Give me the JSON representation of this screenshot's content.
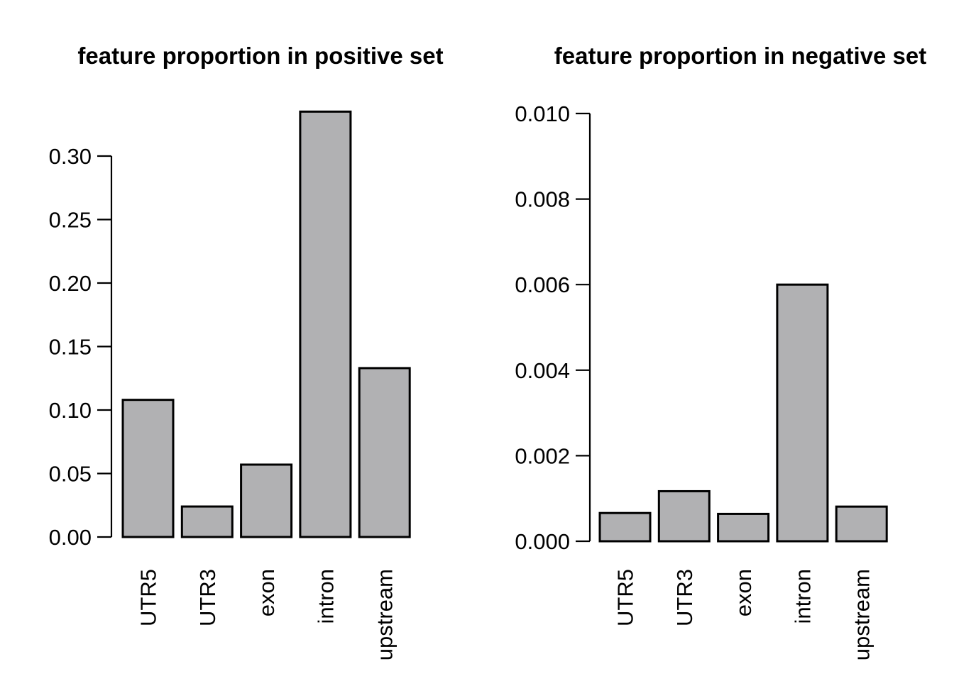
{
  "figure": {
    "background": "#ffffff",
    "text_color": "#000000"
  },
  "chart_data": [
    {
      "type": "bar",
      "title": "feature proportion in positive set",
      "categories": [
        "UTR5",
        "UTR3",
        "exon",
        "intron",
        "upstream"
      ],
      "values": [
        0.108,
        0.024,
        0.057,
        0.335,
        0.133
      ],
      "yticks": {
        "labels": [
          "0.00",
          "0.05",
          "0.10",
          "0.15",
          "0.20",
          "0.25",
          "0.30"
        ],
        "values": [
          0,
          0.05,
          0.1,
          0.15,
          0.2,
          0.25,
          0.3
        ]
      },
      "ylim": [
        0,
        0.335
      ],
      "xlabel": "",
      "ylabel": "",
      "grid": false,
      "legend": null,
      "bar_fill": "#b1b1b3",
      "bar_stroke": "#000000"
    },
    {
      "type": "bar",
      "title": "feature proportion in negative set",
      "categories": [
        "UTR5",
        "UTR3",
        "exon",
        "intron",
        "upstream"
      ],
      "values": [
        0.00066,
        0.00117,
        0.00064,
        0.006,
        0.00081
      ],
      "yticks": {
        "labels": [
          "0.000",
          "0.002",
          "0.004",
          "0.006",
          "0.008",
          "0.010"
        ],
        "values": [
          0,
          0.002,
          0.004,
          0.006,
          0.008,
          0.01
        ]
      },
      "ylim": [
        0,
        0.01
      ],
      "xlabel": "",
      "ylabel": "",
      "grid": false,
      "legend": null,
      "bar_fill": "#b1b1b3",
      "bar_stroke": "#000000"
    }
  ]
}
